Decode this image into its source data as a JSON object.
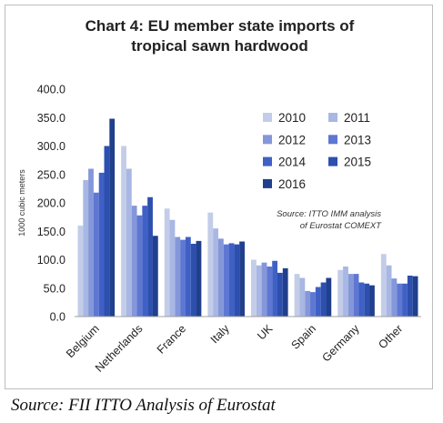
{
  "chart_data": {
    "type": "bar",
    "title_line1": "Chart 4: EU member state imports of",
    "title_line2": "tropical sawn hardwood",
    "ylabel": "1000 cubic meters",
    "xlabel": "",
    "ylim": [
      0,
      400
    ],
    "yticks": [
      "0.0",
      "50.0",
      "100.0",
      "150.0",
      "200.0",
      "250.0",
      "300.0",
      "350.0",
      "400.0"
    ],
    "grid": false,
    "legend_position": "top-right",
    "annotation_line1": "Source: ITTO IMM analysis",
    "annotation_line2": "of Eurostat COMEXT",
    "categories": [
      "Belgium",
      "Netherlands",
      "France",
      "Italy",
      "UK",
      "Spain",
      "Germany",
      "Other"
    ],
    "series": [
      {
        "name": "2010",
        "color": "#c3cde9",
        "values": [
          160,
          300,
          190,
          183,
          100,
          75,
          82,
          110
        ]
      },
      {
        "name": "2011",
        "color": "#a8b7e3",
        "values": [
          240,
          260,
          170,
          155,
          90,
          68,
          88,
          90
        ]
      },
      {
        "name": "2012",
        "color": "#8497d9",
        "values": [
          260,
          195,
          140,
          137,
          95,
          45,
          75,
          67
        ]
      },
      {
        "name": "2013",
        "color": "#5d77d2",
        "values": [
          218,
          178,
          135,
          127,
          88,
          43,
          75,
          58
        ]
      },
      {
        "name": "2014",
        "color": "#3f60c5",
        "values": [
          253,
          195,
          140,
          129,
          98,
          52,
          60,
          58
        ]
      },
      {
        "name": "2015",
        "color": "#2d4fae",
        "values": [
          300,
          210,
          128,
          127,
          77,
          60,
          58,
          72
        ]
      },
      {
        "name": "2016",
        "color": "#203f8c",
        "values": [
          348,
          142,
          133,
          132,
          85,
          68,
          55,
          71
        ]
      }
    ]
  },
  "source_caption": "Source: FII ITTO Analysis of Eurostat"
}
